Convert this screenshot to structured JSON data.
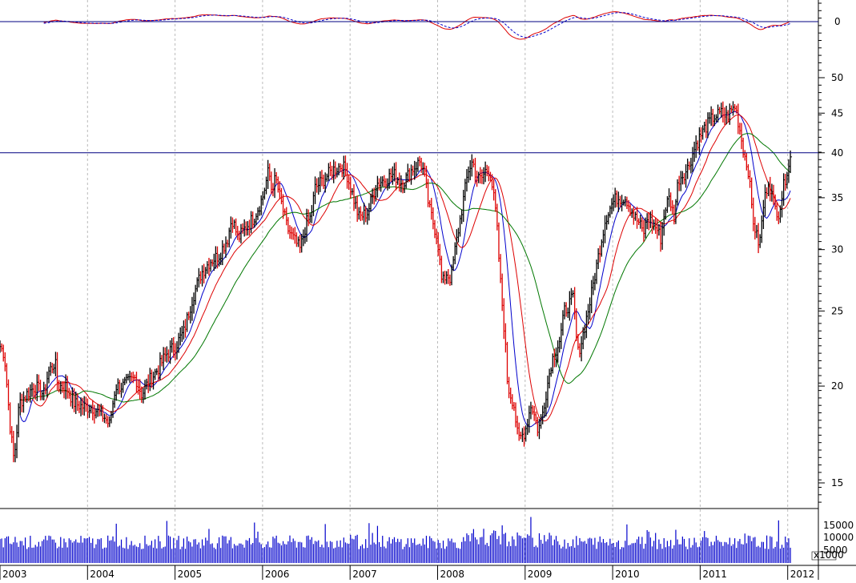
{
  "chart_data": {
    "type": "candlestick",
    "grid": true,
    "price_scale": "log",
    "colors": {
      "up_bar": "#000000",
      "down_bar": "#dd0000",
      "ma_short": "#0000cc",
      "ma_mid": "#dd0000",
      "ma_long": "#007700",
      "macd": "#dd0000",
      "macd_signal": "#0000cc",
      "volume": "#0000cc",
      "axis": "#000080",
      "grid": "#bbbbbb"
    },
    "x_ticks": [
      "2003",
      "2004",
      "2005",
      "2006",
      "2007",
      "2008",
      "2009",
      "2010",
      "2011",
      "2012"
    ],
    "price_panel": {
      "y_ticks": [
        15,
        20,
        25,
        30,
        35,
        40,
        45,
        50
      ],
      "ylim": [
        14.2,
        52
      ],
      "reference_line": 40,
      "close_keypoints": [
        [
          2003.0,
          22.5
        ],
        [
          2003.05,
          22.0
        ],
        [
          2003.12,
          17.5
        ],
        [
          2003.16,
          16.0
        ],
        [
          2003.22,
          19.0
        ],
        [
          2003.3,
          19.5
        ],
        [
          2003.4,
          20.0
        ],
        [
          2003.5,
          19.5
        ],
        [
          2003.55,
          20.8
        ],
        [
          2003.63,
          21.5
        ],
        [
          2003.66,
          20.0
        ],
        [
          2003.75,
          20.0
        ],
        [
          2003.85,
          19.0
        ],
        [
          2003.95,
          18.8
        ],
        [
          2004.05,
          18.8
        ],
        [
          2004.2,
          18.2
        ],
        [
          2004.25,
          17.8
        ],
        [
          2004.32,
          20.0
        ],
        [
          2004.4,
          20.0
        ],
        [
          2004.55,
          20.5
        ],
        [
          2004.62,
          19.5
        ],
        [
          2004.7,
          20.3
        ],
        [
          2004.8,
          21.0
        ],
        [
          2004.9,
          22.0
        ],
        [
          2005.0,
          22.5
        ],
        [
          2005.1,
          23.5
        ],
        [
          2005.2,
          26.0
        ],
        [
          2005.3,
          28.0
        ],
        [
          2005.4,
          29.0
        ],
        [
          2005.5,
          29.5
        ],
        [
          2005.6,
          31.0
        ],
        [
          2005.65,
          33.0
        ],
        [
          2005.72,
          31.0
        ],
        [
          2005.8,
          32.0
        ],
        [
          2005.9,
          33.0
        ],
        [
          2006.0,
          35.0
        ],
        [
          2006.07,
          38.0
        ],
        [
          2006.1,
          36.0
        ],
        [
          2006.15,
          37.0
        ],
        [
          2006.2,
          35.0
        ],
        [
          2006.28,
          32.0
        ],
        [
          2006.35,
          31.0
        ],
        [
          2006.43,
          30.0
        ],
        [
          2006.5,
          32.5
        ],
        [
          2006.55,
          33.0
        ],
        [
          2006.6,
          36.0
        ],
        [
          2006.7,
          37.0
        ],
        [
          2006.8,
          38.0
        ],
        [
          2006.9,
          38.5
        ],
        [
          2006.95,
          38.0
        ],
        [
          2007.1,
          33.0
        ],
        [
          2007.2,
          33.5
        ],
        [
          2007.3,
          36.5
        ],
        [
          2007.4,
          37.0
        ],
        [
          2007.5,
          37.5
        ],
        [
          2007.6,
          36.5
        ],
        [
          2007.7,
          38.0
        ],
        [
          2007.8,
          39.0
        ],
        [
          2007.85,
          37.5
        ],
        [
          2007.9,
          34.0
        ],
        [
          2008.0,
          31.0
        ],
        [
          2008.05,
          27.0
        ],
        [
          2008.1,
          28.0
        ],
        [
          2008.15,
          27.5
        ],
        [
          2008.2,
          30.0
        ],
        [
          2008.28,
          34.0
        ],
        [
          2008.35,
          38.0
        ],
        [
          2008.4,
          39.0
        ],
        [
          2008.45,
          37.0
        ],
        [
          2008.5,
          37.0
        ],
        [
          2008.55,
          38.0
        ],
        [
          2008.6,
          38.0
        ],
        [
          2008.67,
          33.0
        ],
        [
          2008.72,
          27.0
        ],
        [
          2008.77,
          23.0
        ],
        [
          2008.8,
          20.0
        ],
        [
          2008.87,
          19.0
        ],
        [
          2008.92,
          17.0
        ],
        [
          2009.0,
          17.5
        ],
        [
          2009.07,
          19.0
        ],
        [
          2009.15,
          17.5
        ],
        [
          2009.2,
          18.5
        ],
        [
          2009.3,
          21.5
        ],
        [
          2009.4,
          23.0
        ],
        [
          2009.45,
          25.0
        ],
        [
          2009.55,
          26.0
        ],
        [
          2009.6,
          22.0
        ],
        [
          2009.65,
          23.0
        ],
        [
          2009.75,
          26.0
        ],
        [
          2009.85,
          30.0
        ],
        [
          2009.92,
          33.0
        ],
        [
          2010.0,
          34.5
        ],
        [
          2010.05,
          35.0
        ],
        [
          2010.15,
          35.0
        ],
        [
          2010.25,
          33.0
        ],
        [
          2010.3,
          32.5
        ],
        [
          2010.35,
          31.5
        ],
        [
          2010.4,
          33.0
        ],
        [
          2010.5,
          32.0
        ],
        [
          2010.55,
          31.0
        ],
        [
          2010.6,
          34.0
        ],
        [
          2010.65,
          35.0
        ],
        [
          2010.7,
          33.0
        ],
        [
          2010.75,
          37.0
        ],
        [
          2010.85,
          38.0
        ],
        [
          2010.95,
          41.0
        ],
        [
          2011.05,
          43.0
        ],
        [
          2011.15,
          44.5
        ],
        [
          2011.25,
          45.0
        ],
        [
          2011.3,
          44.5
        ],
        [
          2011.4,
          46.0
        ],
        [
          2011.45,
          43.0
        ],
        [
          2011.5,
          40.0
        ],
        [
          2011.55,
          38.0
        ],
        [
          2011.6,
          33.0
        ],
        [
          2011.65,
          31.0
        ],
        [
          2011.68,
          30.5
        ],
        [
          2011.72,
          34.0
        ],
        [
          2011.78,
          37.0
        ],
        [
          2011.85,
          34.0
        ],
        [
          2011.9,
          33.5
        ],
        [
          2011.95,
          36.0
        ],
        [
          2012.0,
          38.5
        ],
        [
          2012.05,
          40.0
        ]
      ]
    },
    "oscillator_panel": {
      "y_ticks": [
        0
      ],
      "reference_line": 0
    },
    "volume_panel": {
      "y_ticks": [
        "15000",
        "10000",
        "5000"
      ],
      "ylim": [
        0,
        17500
      ],
      "unit_label": "x1000"
    }
  }
}
